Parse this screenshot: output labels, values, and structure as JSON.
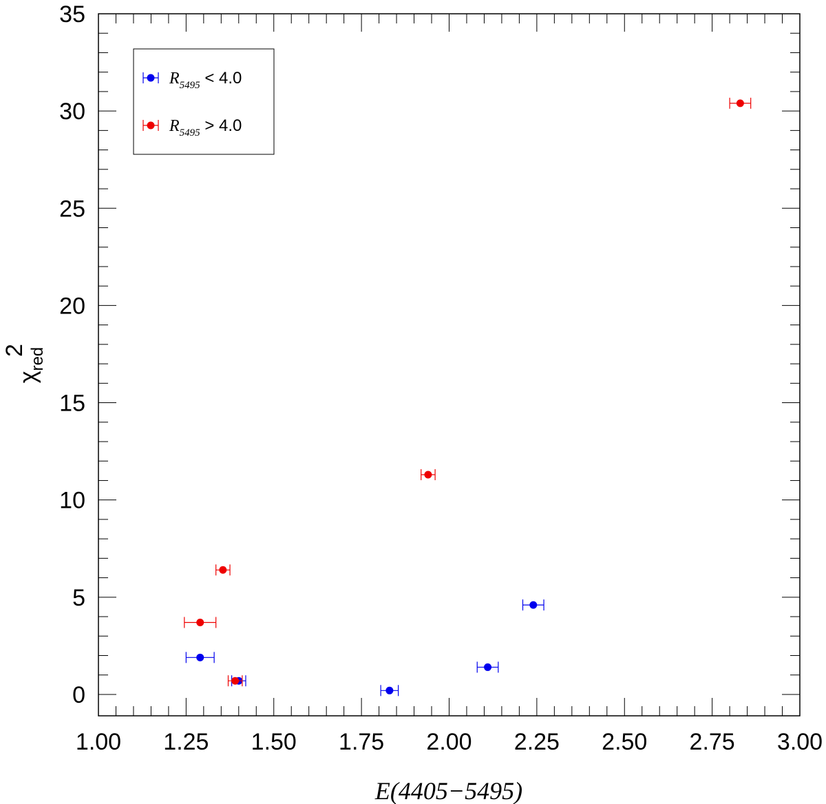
{
  "chart_data": {
    "type": "scatter",
    "xlabel": "E(4405−5495)",
    "ylabel": "χ",
    "ylabel_sup": "2",
    "ylabel_sub": "red",
    "xlim": [
      1.0,
      3.0
    ],
    "ylim": [
      -1.1,
      35
    ],
    "x_ticks": [
      1.0,
      1.25,
      1.5,
      1.75,
      2.0,
      2.25,
      2.5,
      2.75,
      3.0
    ],
    "x_tick_labels": [
      "1.00",
      "1.25",
      "1.50",
      "1.75",
      "2.00",
      "2.25",
      "2.50",
      "2.75",
      "3.00"
    ],
    "y_ticks": [
      0,
      5,
      10,
      15,
      20,
      25,
      30,
      35
    ],
    "y_tick_labels": [
      "0",
      "5",
      "10",
      "15",
      "20",
      "25",
      "30",
      "35"
    ],
    "grid": false,
    "legend_position": "top-left",
    "series": [
      {
        "legend_symbol": "R",
        "legend_sub": "5495",
        "legend_rest": " < 4.0",
        "color": "#0000ee",
        "points": [
          {
            "x": 1.29,
            "y": 1.9,
            "xerr": 0.04
          },
          {
            "x": 1.4,
            "y": 0.7,
            "xerr": 0.02
          },
          {
            "x": 1.83,
            "y": 0.2,
            "xerr": 0.025
          },
          {
            "x": 2.11,
            "y": 1.4,
            "xerr": 0.03
          },
          {
            "x": 2.24,
            "y": 4.6,
            "xerr": 0.03
          }
        ]
      },
      {
        "legend_symbol": "R",
        "legend_sub": "5495",
        "legend_rest": " > 4.0",
        "color": "#ee0000",
        "points": [
          {
            "x": 1.29,
            "y": 3.7,
            "xerr": 0.045
          },
          {
            "x": 1.355,
            "y": 6.4,
            "xerr": 0.02
          },
          {
            "x": 1.39,
            "y": 0.7,
            "xerr": 0.02
          },
          {
            "x": 1.94,
            "y": 11.3,
            "xerr": 0.02
          },
          {
            "x": 2.83,
            "y": 30.4,
            "xerr": 0.03
          }
        ]
      }
    ]
  }
}
